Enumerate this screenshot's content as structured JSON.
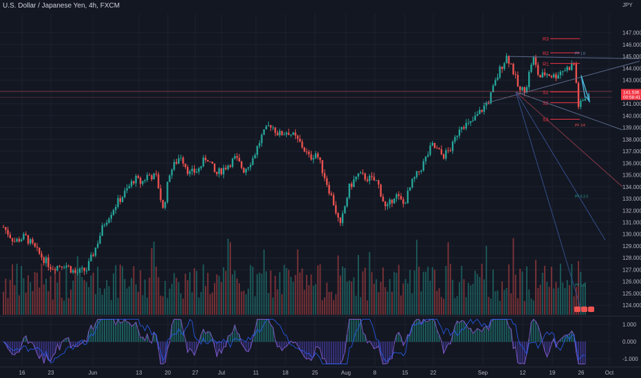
{
  "header": {
    "title": "U.S. Dollar / Japanese Yen, 4h, FXCM"
  },
  "colors": {
    "background": "#131722",
    "up": "#26a69a",
    "down": "#ef5350",
    "grid": "#1e2230",
    "axis_text": "#b2b5be",
    "pivot": "#f23645",
    "trend": "#2962ff"
  },
  "chart_data": {
    "type": "candlestick",
    "title": "U.S. Dollar / Japanese Yen, 4h, FXCM",
    "currency": "JPY",
    "y_ticks": [
      "147.000",
      "146.000",
      "145.000",
      "144.000",
      "143.000",
      "142.000",
      "141.000",
      "140.000",
      "139.000",
      "138.000",
      "137.000",
      "136.000",
      "135.000",
      "134.000",
      "133.000",
      "132.000",
      "131.000",
      "130.000",
      "129.000",
      "128.000",
      "127.000",
      "126.000",
      "125.000",
      "124.000"
    ],
    "x_ticks": [
      "16",
      "23",
      "Jun",
      "13",
      "20",
      "27",
      "Jul",
      "11",
      "18",
      "25",
      "Aug",
      "8",
      "15",
      "22",
      "Sep",
      "12",
      "19",
      "26",
      "Oct"
    ],
    "ylim": [
      123.2,
      148.6
    ],
    "price_path": [
      [
        0,
        130.6
      ],
      [
        0.5,
        129.4
      ],
      [
        1,
        129.8
      ],
      [
        1.6,
        128.4
      ],
      [
        2.2,
        127.2
      ],
      [
        2.8,
        127.5
      ],
      [
        3.3,
        126.7
      ],
      [
        3.8,
        127.0
      ],
      [
        4.2,
        128.8
      ],
      [
        4.6,
        130.9
      ],
      [
        5.1,
        132.4
      ],
      [
        5.6,
        133.6
      ],
      [
        6.0,
        134.7
      ],
      [
        6.3,
        134.3
      ],
      [
        6.6,
        135.0
      ],
      [
        7.0,
        134.8
      ],
      [
        7.3,
        132.0
      ],
      [
        7.6,
        135.2
      ],
      [
        8.1,
        136.7
      ],
      [
        8.5,
        135.1
      ],
      [
        8.9,
        135.4
      ],
      [
        9.3,
        136.6
      ],
      [
        9.7,
        135.0
      ],
      [
        10.1,
        135.6
      ],
      [
        10.6,
        136.4
      ],
      [
        11.0,
        135.4
      ],
      [
        11.4,
        136.4
      ],
      [
        11.8,
        138.2
      ],
      [
        12.2,
        139.3
      ],
      [
        12.6,
        138.4
      ],
      [
        13.0,
        138.7
      ],
      [
        13.3,
        138.2
      ],
      [
        13.6,
        137.6
      ],
      [
        14.0,
        136.4
      ],
      [
        14.3,
        136.9
      ],
      [
        14.7,
        134.8
      ],
      [
        15.1,
        132.6
      ],
      [
        15.4,
        130.6
      ],
      [
        15.8,
        133.9
      ],
      [
        16.2,
        135.0
      ],
      [
        16.7,
        134.7
      ],
      [
        17.1,
        134.4
      ],
      [
        17.5,
        132.0
      ],
      [
        17.9,
        133.4
      ],
      [
        18.3,
        132.5
      ],
      [
        18.7,
        134.4
      ],
      [
        19.1,
        135.6
      ],
      [
        19.6,
        137.5
      ],
      [
        20.1,
        136.6
      ],
      [
        20.5,
        137.3
      ],
      [
        20.9,
        139.3
      ],
      [
        21.3,
        139.2
      ],
      [
        21.7,
        140.1
      ],
      [
        22.2,
        141.3
      ],
      [
        22.7,
        143.9
      ],
      [
        23.0,
        145.0
      ],
      [
        23.2,
        144.4
      ],
      [
        23.6,
        142.0
      ],
      [
        23.9,
        142.4
      ],
      [
        24.2,
        145.0
      ],
      [
        24.5,
        143.2
      ],
      [
        24.8,
        143.6
      ],
      [
        25.2,
        143.3
      ],
      [
        25.5,
        143.8
      ],
      [
        25.8,
        144.0
      ],
      [
        26.1,
        144.4
      ],
      [
        26.3,
        140.7
      ],
      [
        26.6,
        141.5
      ]
    ],
    "indicators": {
      "pivots": [
        {
          "label": "R3",
          "value": 146.5
        },
        {
          "label": "R2",
          "value": 145.3
        },
        {
          "label": "R1",
          "value": 144.4
        },
        {
          "label": "S1",
          "value": 142.0
        },
        {
          "label": "S2",
          "value": 141.1
        },
        {
          "label": "S3",
          "value": 139.7
        }
      ],
      "fan_labels": [
        "PF 1.8",
        "PF 1/4",
        "PF 0.3 3",
        "PF 1.5"
      ],
      "last_price_badges": [
        "141.536",
        "00:58:41"
      ]
    },
    "oscillator": {
      "y_ticks": [
        "1.000",
        "0.000",
        "-1.000"
      ],
      "ylim": [
        -1.4,
        1.4
      ]
    }
  }
}
